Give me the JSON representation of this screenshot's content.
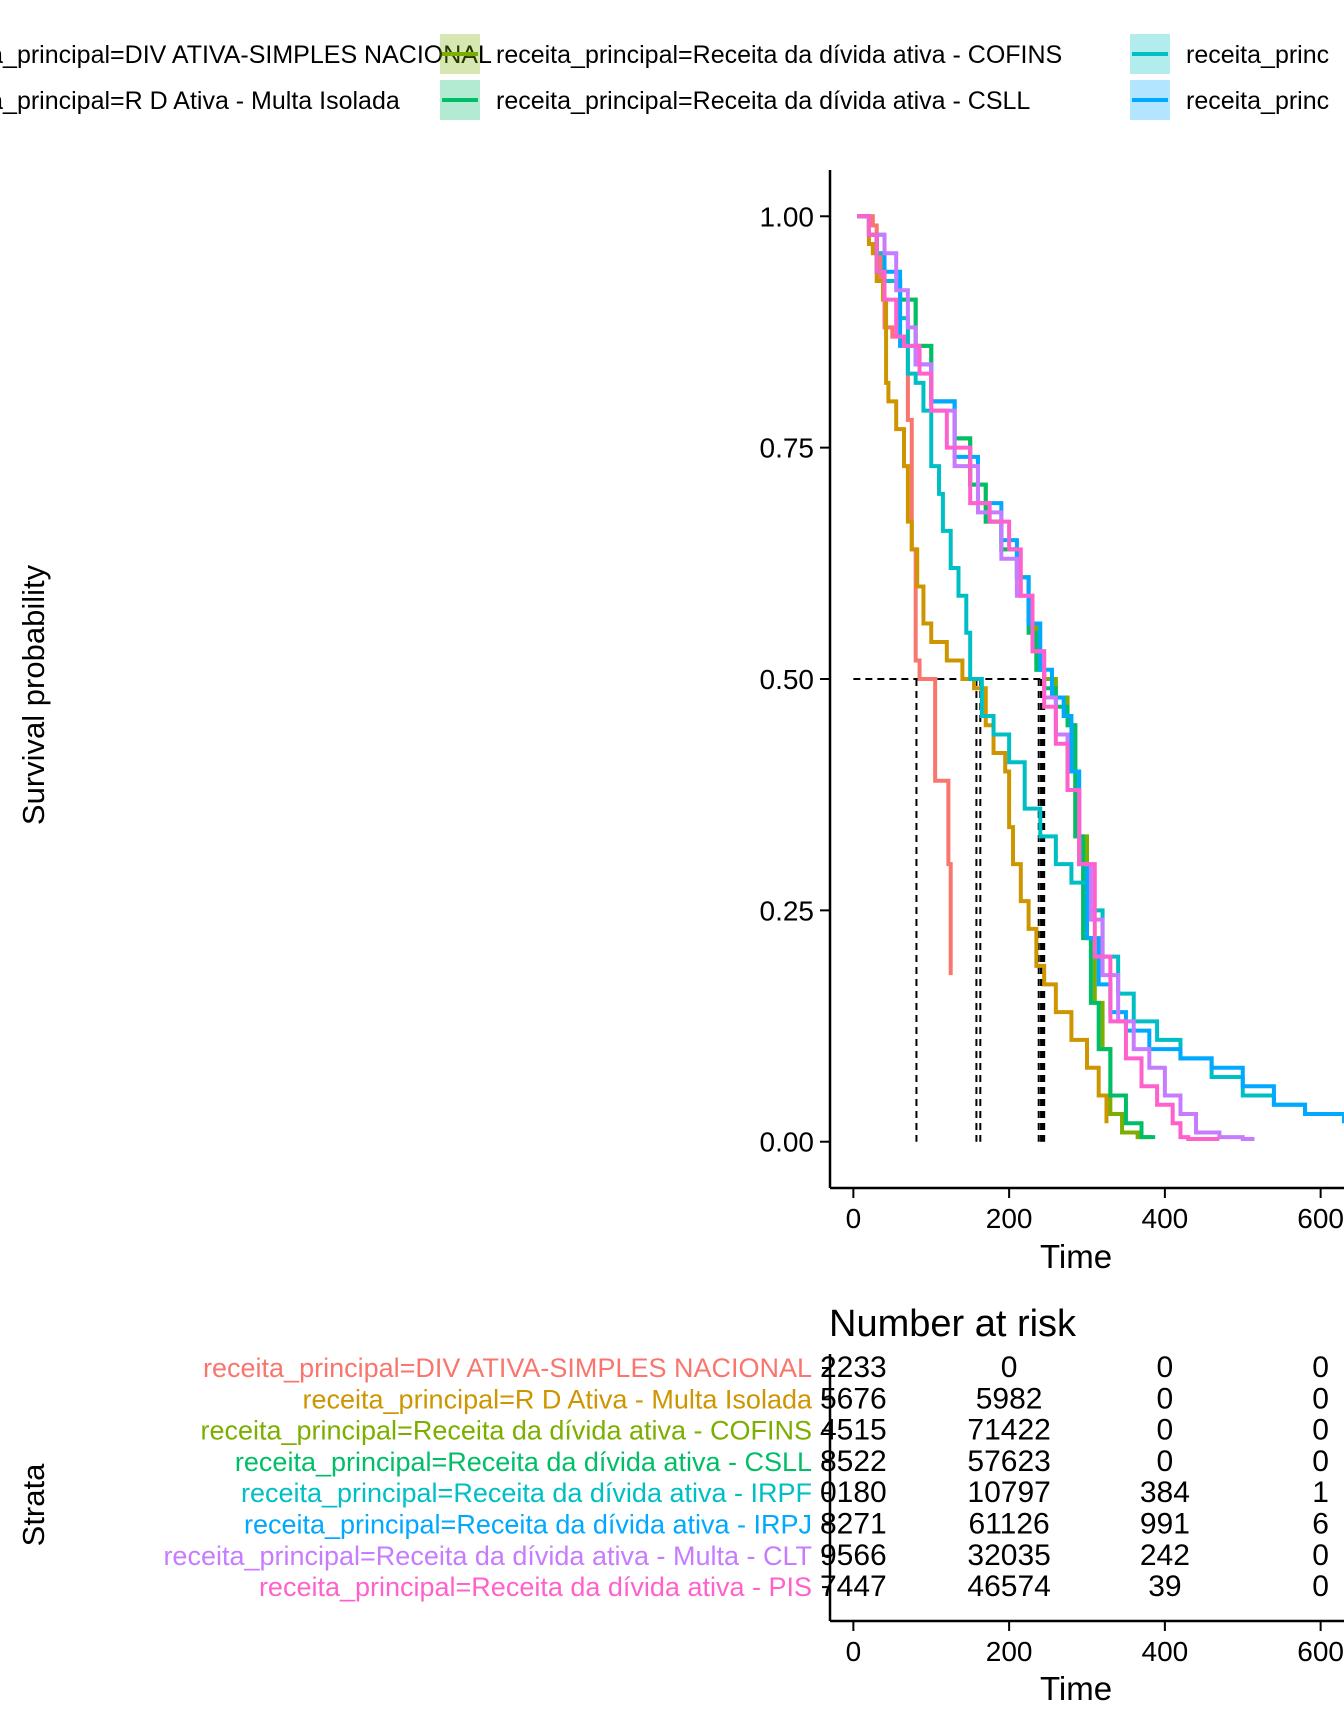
{
  "colors": {
    "DIV ATIVA-SIMPLES NACIONAL": "#F8766D",
    "R D Ativa - Multa Isolada": "#CD9600",
    "COFINS": "#7CAE00",
    "CSLL": "#00BE67",
    "IRPF": "#00BFC4",
    "IRPJ": "#00A9FF",
    "Multa - CLT": "#C77CFF",
    "PIS": "#FF61CC"
  },
  "legend": {
    "items": [
      {
        "label": "receita_principal=DIV ATIVA-SIMPLES NACIONAL",
        "color": "#F8766D"
      },
      {
        "label": "receita_principal=R D Ativa - Multa Isolada",
        "color": "#CD9600"
      },
      {
        "label": "receita_principal=Receita da dívida ativa - COFINS",
        "color": "#7CAE00"
      },
      {
        "label": "receita_principal=Receita da dívida ativa - CSLL",
        "color": "#00BE67"
      },
      {
        "label": "receita_princ",
        "color": "#00BFC4"
      },
      {
        "label": "receita_princ",
        "color": "#00A9FF"
      }
    ]
  },
  "chart_data": [
    {
      "type": "line",
      "ylabel": "Survival probability",
      "xlabel": "Time",
      "xlim": [
        -30,
        630
      ],
      "ylim": [
        -0.05,
        1.05
      ],
      "xticks": [
        "0",
        "200",
        "400",
        "600"
      ],
      "yticks": [
        "0.00",
        "0.25",
        "0.50",
        "0.75",
        "1.00"
      ],
      "median_lines": [
        {
          "x": 81,
          "y": 0.5
        },
        {
          "x": 158,
          "y": 0.5
        },
        {
          "x": 163,
          "y": 0.5
        },
        {
          "x": 238,
          "y": 0.5
        },
        {
          "x": 241,
          "y": 0.5
        },
        {
          "x": 243,
          "y": 0.5
        },
        {
          "x": 245,
          "y": 0.5
        }
      ],
      "series": [
        {
          "name": "receita_principal=DIV ATIVA-SIMPLES NACIONAL",
          "color": "#F8766D",
          "x": [
            5,
            25,
            30,
            35,
            40,
            50,
            55,
            65,
            70,
            75,
            80,
            85,
            100,
            105,
            115,
            122,
            125
          ],
          "y": [
            1.0,
            0.99,
            0.96,
            0.93,
            0.88,
            0.87,
            0.87,
            0.87,
            0.78,
            0.64,
            0.52,
            0.5,
            0.5,
            0.39,
            0.39,
            0.3,
            0.18
          ]
        },
        {
          "name": "receita_principal=R D Ativa - Multa Isolada",
          "color": "#CD9600",
          "x": [
            5,
            20,
            25,
            30,
            38,
            42,
            45,
            55,
            65,
            70,
            75,
            82,
            90,
            100,
            120,
            140,
            155,
            170,
            180,
            195,
            200,
            205,
            215,
            225,
            235,
            245,
            260,
            280,
            300,
            315,
            325
          ],
          "y": [
            1.0,
            0.97,
            0.96,
            0.93,
            0.91,
            0.82,
            0.8,
            0.77,
            0.73,
            0.67,
            0.64,
            0.6,
            0.56,
            0.54,
            0.52,
            0.5,
            0.49,
            0.45,
            0.42,
            0.4,
            0.34,
            0.3,
            0.26,
            0.23,
            0.19,
            0.17,
            0.14,
            0.11,
            0.08,
            0.05,
            0.02
          ]
        },
        {
          "name": "receita_principal=Receita da dívida ativa - COFINS",
          "color": "#7CAE00",
          "x": [
            5,
            20,
            30,
            40,
            60,
            80,
            100,
            130,
            150,
            170,
            190,
            210,
            225,
            235,
            245,
            260,
            275,
            285,
            300,
            310,
            320,
            330,
            345,
            365,
            380
          ],
          "y": [
            1.0,
            0.98,
            0.94,
            0.93,
            0.91,
            0.86,
            0.8,
            0.76,
            0.71,
            0.67,
            0.64,
            0.61,
            0.56,
            0.51,
            0.5,
            0.48,
            0.45,
            0.33,
            0.22,
            0.15,
            0.1,
            0.03,
            0.01,
            0.005,
            0.003
          ]
        },
        {
          "name": "receita_principal=Receita da dívida ativa - CSLL",
          "color": "#00BE67",
          "x": [
            5,
            20,
            30,
            40,
            60,
            80,
            100,
            130,
            150,
            170,
            190,
            210,
            225,
            235,
            245,
            260,
            275,
            285,
            295,
            305,
            315,
            330,
            350,
            370,
            385
          ],
          "y": [
            1.0,
            0.98,
            0.94,
            0.93,
            0.91,
            0.86,
            0.8,
            0.76,
            0.71,
            0.67,
            0.64,
            0.61,
            0.55,
            0.51,
            0.49,
            0.47,
            0.45,
            0.33,
            0.22,
            0.15,
            0.1,
            0.05,
            0.02,
            0.005,
            0.003
          ]
        },
        {
          "name": "receita_principal=Receita da dívida ativa - IRPF",
          "color": "#00BFC4",
          "x": [
            5,
            20,
            30,
            40,
            60,
            70,
            80,
            90,
            100,
            110,
            115,
            125,
            135,
            145,
            150,
            165,
            180,
            200,
            220,
            240,
            260,
            280,
            300,
            320,
            340,
            360,
            390,
            420,
            460,
            500,
            540,
            580,
            630
          ],
          "y": [
            1.0,
            0.98,
            0.96,
            0.93,
            0.89,
            0.83,
            0.82,
            0.79,
            0.73,
            0.7,
            0.66,
            0.62,
            0.59,
            0.55,
            0.5,
            0.46,
            0.44,
            0.41,
            0.36,
            0.33,
            0.3,
            0.28,
            0.25,
            0.2,
            0.16,
            0.13,
            0.11,
            0.09,
            0.07,
            0.05,
            0.04,
            0.03,
            0.03
          ]
        },
        {
          "name": "receita_principal=Receita da dívida ativa - IRPJ",
          "color": "#00A9FF",
          "x": [
            5,
            20,
            40,
            60,
            80,
            100,
            130,
            160,
            190,
            210,
            225,
            240,
            255,
            270,
            280,
            290,
            300,
            315,
            330,
            350,
            380,
            420,
            460,
            500,
            540,
            580,
            630
          ],
          "y": [
            1.0,
            0.98,
            0.94,
            0.86,
            0.84,
            0.8,
            0.74,
            0.69,
            0.65,
            0.61,
            0.56,
            0.51,
            0.48,
            0.46,
            0.4,
            0.3,
            0.22,
            0.17,
            0.14,
            0.12,
            0.1,
            0.09,
            0.08,
            0.06,
            0.04,
            0.03,
            0.02
          ]
        },
        {
          "name": "receita_principal=Receita da dívida ativa - Multa - CLT",
          "color": "#C77CFF",
          "x": [
            5,
            20,
            40,
            55,
            70,
            80,
            100,
            130,
            160,
            190,
            210,
            230,
            245,
            260,
            275,
            290,
            305,
            320,
            340,
            360,
            380,
            400,
            420,
            440,
            470,
            500,
            515
          ],
          "y": [
            1.0,
            0.98,
            0.96,
            0.92,
            0.88,
            0.84,
            0.79,
            0.73,
            0.68,
            0.63,
            0.59,
            0.53,
            0.48,
            0.44,
            0.38,
            0.3,
            0.24,
            0.18,
            0.13,
            0.1,
            0.08,
            0.05,
            0.03,
            0.01,
            0.005,
            0.003,
            0.003
          ]
        },
        {
          "name": "receita_principal=Receita da dívida ativa - PIS",
          "color": "#FF61CC",
          "x": [
            5,
            20,
            30,
            40,
            55,
            65,
            85,
            100,
            120,
            150,
            175,
            200,
            215,
            230,
            245,
            260,
            275,
            290,
            310,
            330,
            350,
            370,
            390,
            410,
            420,
            430,
            470
          ],
          "y": [
            1.0,
            0.98,
            0.94,
            0.91,
            0.87,
            0.86,
            0.83,
            0.79,
            0.75,
            0.69,
            0.67,
            0.64,
            0.59,
            0.53,
            0.47,
            0.43,
            0.38,
            0.3,
            0.2,
            0.13,
            0.09,
            0.06,
            0.04,
            0.02,
            0.005,
            0.003,
            0.003
          ]
        }
      ]
    },
    {
      "type": "table",
      "title": "Number at risk",
      "xlabel": "Time",
      "ylabel": "Strata",
      "xlim": [
        -30,
        630
      ],
      "xticks": [
        "0",
        "200",
        "400",
        "600"
      ],
      "columns_x": [
        0,
        200,
        400,
        600
      ],
      "rows": [
        {
          "name": "receita_principal=DIV ATIVA-SIMPLES NACIONAL",
          "color": "#F8766D",
          "values": [
            "2233",
            "0",
            "0",
            "0"
          ]
        },
        {
          "name": "receita_principal=R D Ativa - Multa Isolada",
          "color": "#CD9600",
          "values": [
            "5676",
            "5982",
            "0",
            "0"
          ]
        },
        {
          "name": "receita_principal=Receita da dívida ativa - COFINS",
          "color": "#7CAE00",
          "values": [
            "4515",
            "71422",
            "0",
            "0"
          ]
        },
        {
          "name": "receita_principal=Receita da dívida ativa - CSLL",
          "color": "#00BE67",
          "values": [
            "8522",
            "57623",
            "0",
            "0"
          ]
        },
        {
          "name": "receita_principal=Receita da dívida ativa - IRPF",
          "color": "#00BFC4",
          "values": [
            "0180",
            "10797",
            "384",
            "1"
          ]
        },
        {
          "name": "receita_principal=Receita da dívida ativa - IRPJ",
          "color": "#00A9FF",
          "values": [
            "8271",
            "61126",
            "991",
            "6"
          ]
        },
        {
          "name": "receita_principal=Receita da dívida ativa - Multa - CLT",
          "color": "#C77CFF",
          "values": [
            "9566",
            "32035",
            "242",
            "0"
          ]
        },
        {
          "name": "receita_principal=Receita da dívida ativa - PIS",
          "color": "#FF61CC",
          "values": [
            "7447",
            "46574",
            "39",
            "0"
          ]
        }
      ]
    }
  ]
}
